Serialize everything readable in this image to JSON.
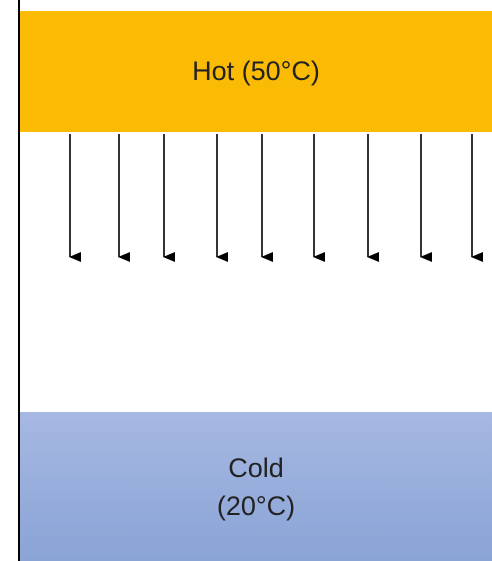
{
  "hot": {
    "label": "Hot (50°C)",
    "color": "#fbbb05"
  },
  "cold": {
    "line1": "Cold",
    "line2": "(20°C)",
    "color": "#8aa4d6"
  },
  "arrows": {
    "count": 9,
    "direction": "down",
    "color": "#000000"
  }
}
